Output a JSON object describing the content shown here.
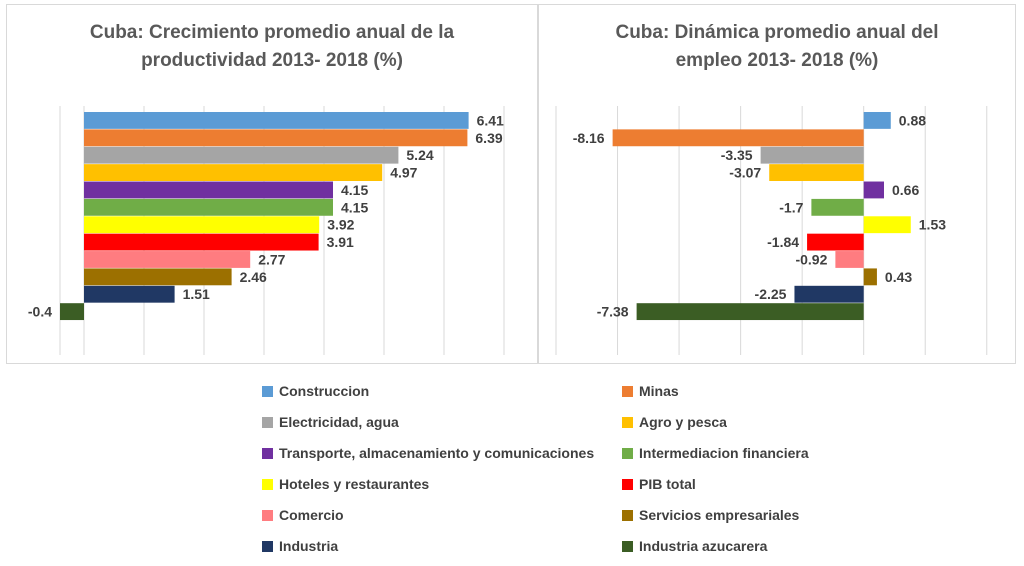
{
  "chart_data": [
    {
      "type": "bar",
      "orientation": "horizontal",
      "title": [
        "Cuba: Crecimiento promedio anual de la",
        "productividad 2013- 2018 (%)"
      ],
      "grid": true,
      "tick_labels_visible": false,
      "xlim": [
        -0.4,
        7
      ],
      "gridlines": [
        -0.4,
        0,
        1,
        2,
        3,
        4,
        5,
        6,
        7
      ],
      "categories": [
        "Construccion",
        "Minas",
        "Electricidad, agua",
        "Agro y pesca",
        "Transporte, almacenamiento y comunicaciones",
        "Intermediacion financiera",
        "Hoteles y restaurantes",
        "PIB total",
        "Comercio",
        "Servicios empresariales",
        "Industria",
        "Industria azucarera"
      ],
      "values": [
        6.41,
        6.39,
        5.24,
        4.97,
        4.15,
        4.15,
        3.92,
        3.91,
        2.77,
        2.46,
        1.51,
        -0.4
      ],
      "labels": [
        "6.41",
        "6.39",
        "5.24",
        "4.97",
        "4.15",
        "4.15",
        "3.92",
        "3.91",
        "2.77",
        "2.46",
        "1.51",
        "-0.4"
      ]
    },
    {
      "type": "bar",
      "orientation": "horizontal",
      "title": [
        "Cuba: Dinámica promedio anual del",
        "empleo  2013- 2018 (%)"
      ],
      "grid": true,
      "tick_labels_visible": false,
      "xlim": [
        -10,
        3
      ],
      "gridlines": [
        -10,
        -8,
        -6,
        -4,
        -2,
        0,
        2,
        4
      ],
      "categories": [
        "Construccion",
        "Minas",
        "Electricidad, agua",
        "Agro y pesca",
        "Transporte, almacenamiento y comunicaciones",
        "Intermediacion financiera",
        "Hoteles y restaurantes",
        "PIB total",
        "Comercio",
        "Servicios empresariales",
        "Industria",
        "Industria azucarera"
      ],
      "values": [
        0.88,
        -8.16,
        -3.35,
        -3.07,
        0.66,
        -1.7,
        1.53,
        -1.84,
        -0.92,
        0.43,
        -2.25,
        -7.38
      ],
      "labels": [
        "0.88",
        "-8.16",
        "-3.35",
        "-3.07",
        "0.66",
        "-1.7",
        "1.53",
        "-1.84",
        "-0.92",
        "0.43",
        "-2.25",
        "-7.38"
      ]
    }
  ],
  "series_colors": [
    "#5b9bd5",
    "#ed7d31",
    "#a5a5a5",
    "#ffc000",
    "#7030a0",
    "#70ad47",
    "#ffff00",
    "#ff0000",
    "#ff7c80",
    "#9c7000",
    "#203864",
    "#3b5d24"
  ],
  "legend": {
    "position": "bottom",
    "items": [
      "Construccion",
      "Minas",
      "Electricidad, agua",
      "Agro y pesca",
      "Transporte, almacenamiento y comunicaciones",
      "Intermediacion financiera",
      "Hoteles y restaurantes",
      "PIB total",
      "Comercio",
      "Servicios empresariales",
      "Industria",
      "Industria azucarera"
    ]
  }
}
